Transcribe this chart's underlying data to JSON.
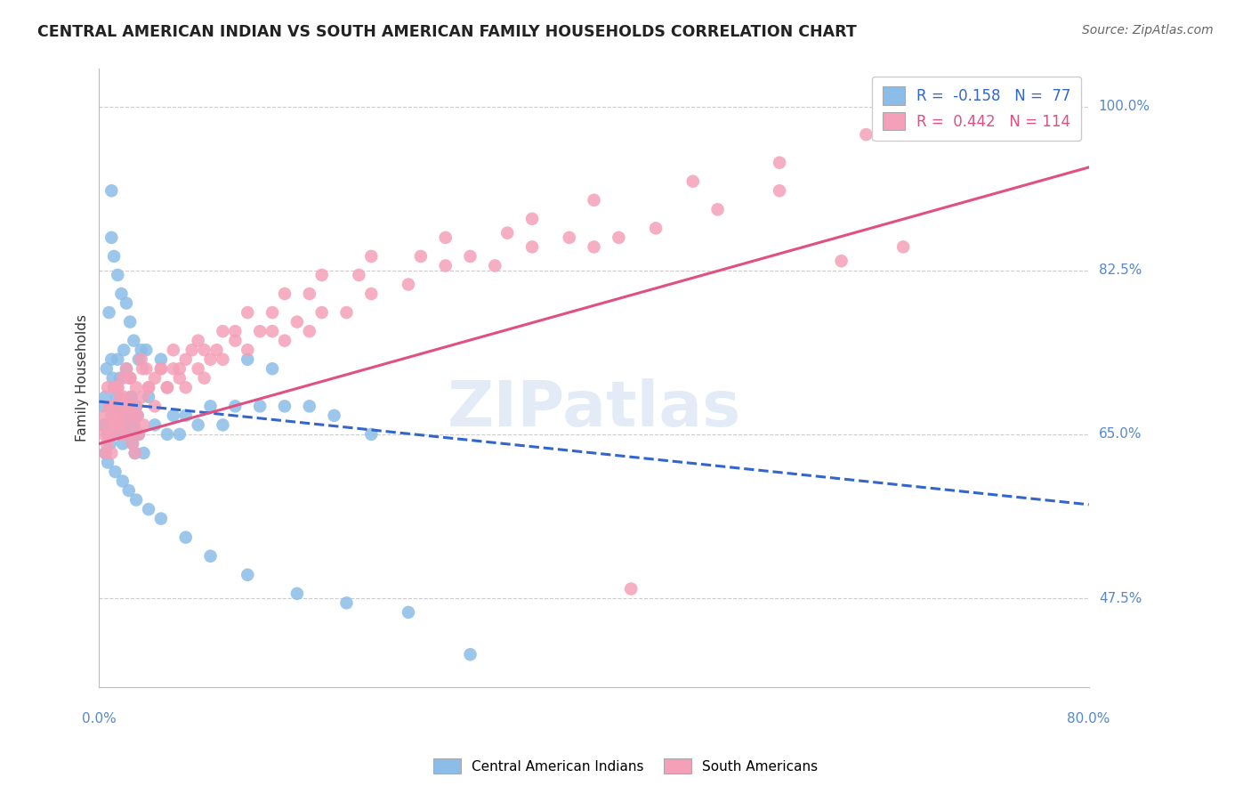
{
  "title": "CENTRAL AMERICAN INDIAN VS SOUTH AMERICAN FAMILY HOUSEHOLDS CORRELATION CHART",
  "source": "Source: ZipAtlas.com",
  "ylabel": "Family Households",
  "yticks": [
    47.5,
    65.0,
    82.5,
    100.0
  ],
  "ytick_labels": [
    "47.5%",
    "65.0%",
    "82.5%",
    "100.0%"
  ],
  "xlim": [
    0.0,
    80.0
  ],
  "ylim": [
    38.0,
    104.0
  ],
  "blue_R": -0.158,
  "blue_N": 77,
  "pink_R": 0.442,
  "pink_N": 114,
  "legend_label_blue": "Central American Indians",
  "legend_label_pink": "South Americans",
  "blue_color": "#8BBDE8",
  "pink_color": "#F4A0B8",
  "blue_line_color": "#3366CC",
  "pink_line_color": "#E05080",
  "watermark": "ZIPatlas",
  "blue_scatter_x": [
    0.3,
    0.4,
    0.5,
    0.6,
    0.7,
    0.8,
    0.9,
    1.0,
    1.0,
    1.1,
    1.2,
    1.3,
    1.4,
    1.5,
    1.5,
    1.6,
    1.7,
    1.8,
    1.9,
    2.0,
    2.0,
    2.1,
    2.2,
    2.3,
    2.4,
    2.5,
    2.6,
    2.7,
    2.8,
    2.9,
    3.0,
    3.1,
    3.2,
    3.4,
    3.6,
    3.8,
    4.0,
    4.5,
    5.0,
    5.5,
    6.0,
    6.5,
    7.0,
    8.0,
    9.0,
    10.0,
    11.0,
    12.0,
    13.0,
    14.0,
    15.0,
    17.0,
    19.0,
    22.0,
    1.0,
    1.2,
    1.5,
    1.8,
    2.2,
    2.5,
    2.8,
    3.2,
    0.5,
    0.7,
    1.3,
    1.9,
    2.4,
    3.0,
    4.0,
    5.0,
    7.0,
    9.0,
    12.0,
    16.0,
    20.0,
    25.0,
    30.0
  ],
  "blue_scatter_y": [
    68.0,
    66.0,
    69.0,
    72.0,
    65.0,
    78.0,
    64.0,
    91.0,
    73.0,
    71.0,
    70.0,
    67.0,
    69.0,
    73.0,
    68.0,
    65.0,
    71.0,
    66.0,
    64.0,
    74.0,
    68.0,
    66.0,
    72.0,
    65.0,
    67.0,
    71.0,
    69.0,
    64.0,
    66.0,
    63.0,
    68.0,
    67.0,
    65.0,
    74.0,
    63.0,
    74.0,
    69.0,
    66.0,
    73.0,
    65.0,
    67.0,
    65.0,
    67.0,
    66.0,
    68.0,
    66.0,
    68.0,
    73.0,
    68.0,
    72.0,
    68.0,
    68.0,
    67.0,
    65.0,
    86.0,
    84.0,
    82.0,
    80.0,
    79.0,
    77.0,
    75.0,
    73.0,
    63.0,
    62.0,
    61.0,
    60.0,
    59.0,
    58.0,
    57.0,
    56.0,
    54.0,
    52.0,
    50.0,
    48.0,
    47.0,
    46.0,
    41.5
  ],
  "pink_scatter_x": [
    0.3,
    0.4,
    0.5,
    0.6,
    0.7,
    0.8,
    0.9,
    1.0,
    1.0,
    1.1,
    1.2,
    1.3,
    1.4,
    1.5,
    1.6,
    1.7,
    1.8,
    1.9,
    2.0,
    2.0,
    2.1,
    2.2,
    2.3,
    2.4,
    2.5,
    2.6,
    2.7,
    2.8,
    2.9,
    3.0,
    3.1,
    3.2,
    3.4,
    3.6,
    3.8,
    4.0,
    4.5,
    5.0,
    5.5,
    6.0,
    6.5,
    7.0,
    7.5,
    8.0,
    8.5,
    9.0,
    9.5,
    10.0,
    11.0,
    12.0,
    13.0,
    14.0,
    15.0,
    16.0,
    17.0,
    18.0,
    20.0,
    22.0,
    25.0,
    28.0,
    30.0,
    32.0,
    35.0,
    38.0,
    40.0,
    42.0,
    45.0,
    50.0,
    55.0,
    60.0,
    65.0,
    70.0,
    75.0,
    1.0,
    1.5,
    2.0,
    2.5,
    3.0,
    3.5,
    4.0,
    5.0,
    6.0,
    7.0,
    8.0,
    10.0,
    12.0,
    15.0,
    18.0,
    22.0,
    28.0,
    35.0,
    40.0,
    48.0,
    55.0,
    62.0,
    68.0,
    0.5,
    0.8,
    1.2,
    1.6,
    2.1,
    2.8,
    3.5,
    4.5,
    5.5,
    6.5,
    8.5,
    11.0,
    14.0,
    17.0,
    21.0,
    26.0,
    33.0,
    43.0
  ],
  "pink_scatter_y": [
    66.0,
    65.0,
    67.0,
    64.0,
    70.0,
    68.0,
    65.0,
    67.0,
    63.0,
    66.0,
    70.0,
    68.0,
    66.0,
    70.0,
    67.0,
    69.0,
    65.0,
    71.0,
    68.0,
    66.0,
    67.0,
    72.0,
    65.0,
    68.0,
    71.0,
    69.0,
    64.0,
    66.0,
    63.0,
    68.0,
    67.0,
    65.0,
    73.0,
    66.0,
    72.0,
    70.0,
    68.0,
    72.0,
    70.0,
    72.0,
    71.0,
    70.0,
    74.0,
    72.0,
    71.0,
    73.0,
    74.0,
    73.0,
    75.0,
    74.0,
    76.0,
    76.0,
    75.0,
    77.0,
    76.0,
    78.0,
    78.0,
    80.0,
    81.0,
    83.0,
    84.0,
    83.0,
    85.0,
    86.0,
    85.0,
    86.0,
    87.0,
    89.0,
    91.0,
    83.5,
    85.0,
    97.0,
    100.0,
    68.0,
    70.0,
    69.0,
    71.0,
    70.0,
    72.0,
    70.0,
    72.0,
    74.0,
    73.0,
    75.0,
    76.0,
    78.0,
    80.0,
    82.0,
    84.0,
    86.0,
    88.0,
    90.0,
    92.0,
    94.0,
    97.0,
    100.0,
    63.0,
    65.0,
    67.0,
    66.0,
    68.0,
    67.0,
    69.0,
    71.0,
    70.0,
    72.0,
    74.0,
    76.0,
    78.0,
    80.0,
    82.0,
    84.0,
    86.5,
    48.5
  ],
  "blue_trend_x": [
    0.0,
    80.0
  ],
  "blue_trend_y": [
    68.5,
    57.5
  ],
  "pink_trend_x": [
    0.0,
    80.0
  ],
  "pink_trend_y": [
    64.0,
    93.5
  ]
}
